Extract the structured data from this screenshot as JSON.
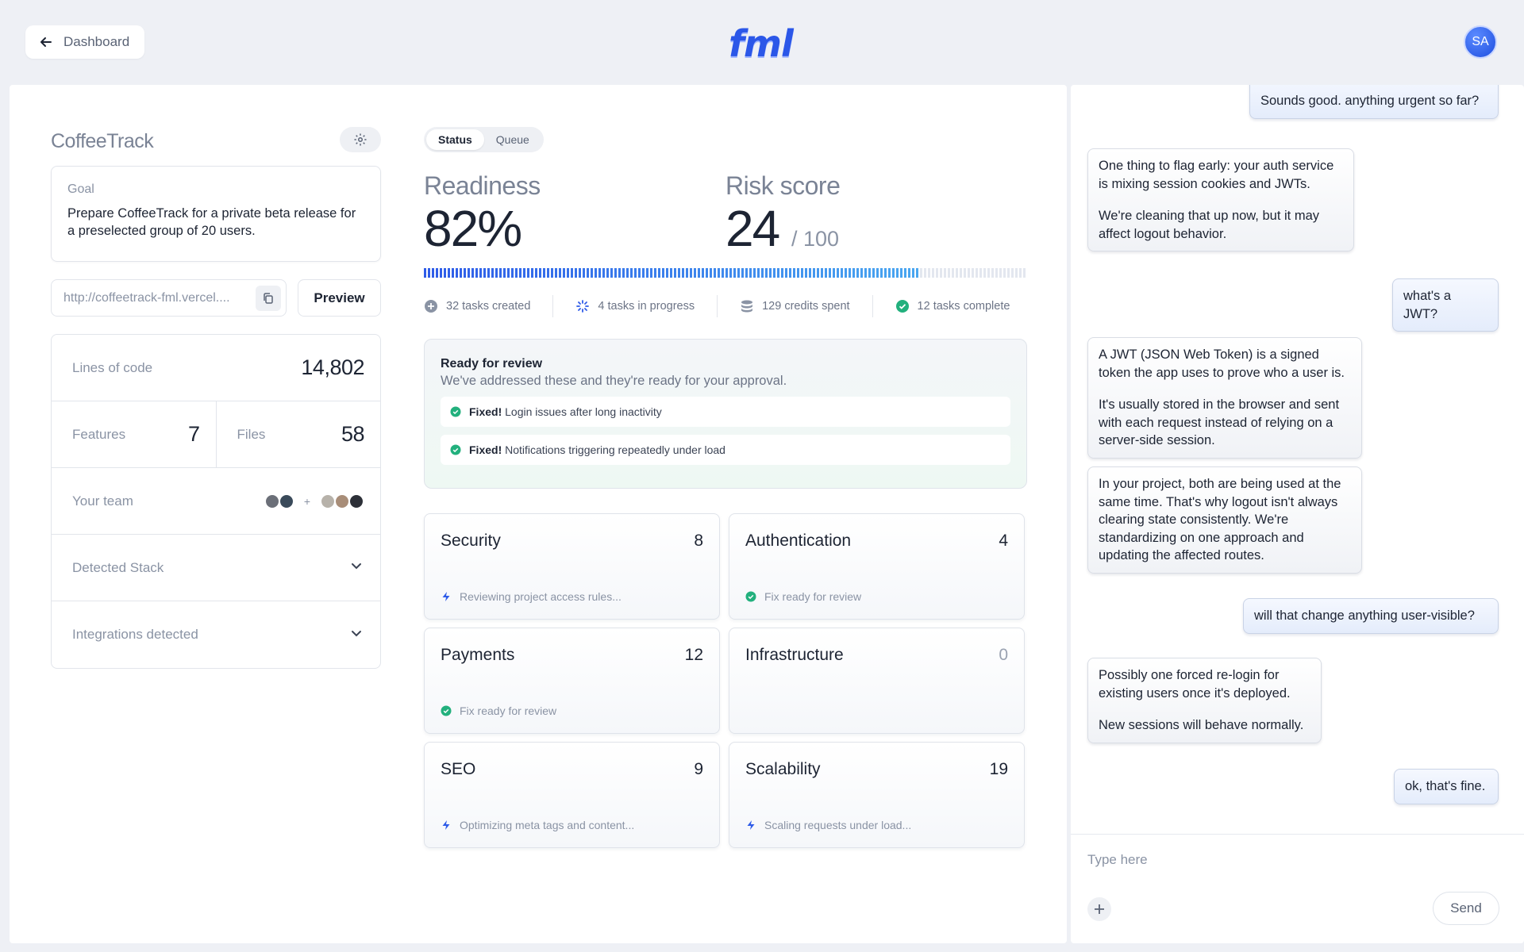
{
  "header": {
    "back_label": "Dashboard",
    "logo_text": "fml",
    "avatar_initials": "SA"
  },
  "project": {
    "name": "CoffeeTrack",
    "goal_label": "Goal",
    "goal_text": "Prepare CoffeeTrack for a private beta release for a preselected group of 20 users.",
    "url": "http://coffeetrack-fml.vercel....",
    "preview_label": "Preview",
    "stats": {
      "loc_label": "Lines of code",
      "loc_value": "14,802",
      "features_label": "Features",
      "features_value": "7",
      "files_label": "Files",
      "files_value": "58",
      "team_label": "Your team",
      "team_plus": "+",
      "stack_label": "Detected Stack",
      "integrations_label": "Integrations detected"
    }
  },
  "tabs": [
    {
      "label": "Status",
      "active": true
    },
    {
      "label": "Queue",
      "active": false
    }
  ],
  "metrics": {
    "readiness_label": "Readiness",
    "readiness_value": "82%",
    "readiness_fraction": 0.82,
    "risk_label": "Risk score",
    "risk_value": "24",
    "risk_max": "/ 100"
  },
  "task_stats": [
    {
      "icon": "plus-circle-icon",
      "text": "32 tasks created"
    },
    {
      "icon": "spinner-icon",
      "text": "4 tasks in progress"
    },
    {
      "icon": "database-icon",
      "text": "129 credits spent"
    },
    {
      "icon": "check-circle-icon",
      "text": "12 tasks complete"
    }
  ],
  "review": {
    "title": "Ready for review",
    "subtitle": "We've addressed these and they're ready for your approval.",
    "items": [
      {
        "prefix": "Fixed!",
        "text": "Login issues after long inactivity"
      },
      {
        "prefix": "Fixed!",
        "text": "Notifications triggering repeatedly under load"
      }
    ]
  },
  "categories": [
    {
      "name": "Security",
      "count": "8",
      "status": "Reviewing project access rules...",
      "status_icon": "bolt-icon"
    },
    {
      "name": "Authentication",
      "count": "4",
      "status": "Fix ready for review",
      "status_icon": "check-circle-icon"
    },
    {
      "name": "Payments",
      "count": "12",
      "status": "Fix ready for review",
      "status_icon": "check-circle-icon"
    },
    {
      "name": "Infrastructure",
      "count": "0",
      "status": "",
      "status_icon": ""
    },
    {
      "name": "SEO",
      "count": "9",
      "status": "Optimizing meta tags and content...",
      "status_icon": "bolt-icon"
    },
    {
      "name": "Scalability",
      "count": "19",
      "status": "Scaling requests under load...",
      "status_icon": "bolt-icon"
    }
  ],
  "chat": {
    "messages": [
      {
        "role": "user",
        "paragraphs": [
          "Sounds good. anything urgent so far?"
        ]
      },
      {
        "role": "bot",
        "paragraphs": [
          "One thing to flag early: your auth service is mixing session cookies and JWTs.",
          "We're cleaning that up now, but it may affect logout behavior."
        ]
      },
      {
        "role": "user",
        "paragraphs": [
          "what's a JWT?"
        ]
      },
      {
        "role": "bot",
        "paragraphs": [
          "A JWT (JSON Web Token) is a signed token the app uses to prove who a user is.",
          "It's usually stored in the browser and sent with each request instead of relying on a server-side session."
        ]
      },
      {
        "role": "bot",
        "paragraphs": [
          "In your project, both are being used at the same time. That's why logout isn't always clearing state consistently. We're standardizing on one approach and updating the affected routes."
        ]
      },
      {
        "role": "user",
        "paragraphs": [
          "will that change anything user-visible?"
        ]
      },
      {
        "role": "bot",
        "paragraphs": [
          "Possibly one forced re-login for existing users once it's deployed.",
          "New sessions will behave normally."
        ]
      },
      {
        "role": "user",
        "paragraphs": [
          "ok, that's fine."
        ]
      }
    ],
    "input_placeholder": "Type here",
    "send_label": "Send"
  },
  "colors": {
    "accent": "#2f5ce8",
    "success": "#22b07d",
    "progress_end": "#4aa7f0"
  }
}
